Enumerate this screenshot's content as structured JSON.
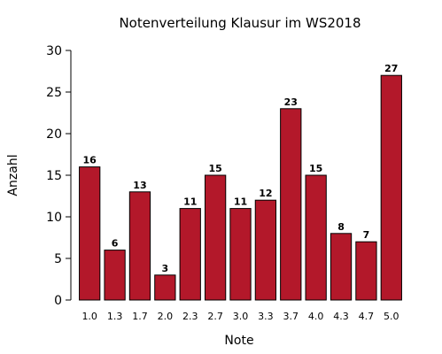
{
  "chart_data": {
    "type": "bar",
    "title": "Notenverteilung Klausur im WS2018",
    "xlabel": "Note",
    "ylabel": "Anzahl",
    "categories": [
      "1.0",
      "1.3",
      "1.7",
      "2.0",
      "2.3",
      "2.7",
      "3.0",
      "3.3",
      "3.7",
      "4.0",
      "4.3",
      "4.7",
      "5.0"
    ],
    "values": [
      16,
      6,
      13,
      3,
      11,
      15,
      11,
      12,
      23,
      15,
      8,
      7,
      27
    ],
    "ylim": [
      0,
      30
    ],
    "yticks": [
      "0",
      "5",
      "10",
      "15",
      "20",
      "25",
      "30"
    ],
    "bar_color": "#b3182a",
    "grid": false,
    "legend": "none"
  }
}
